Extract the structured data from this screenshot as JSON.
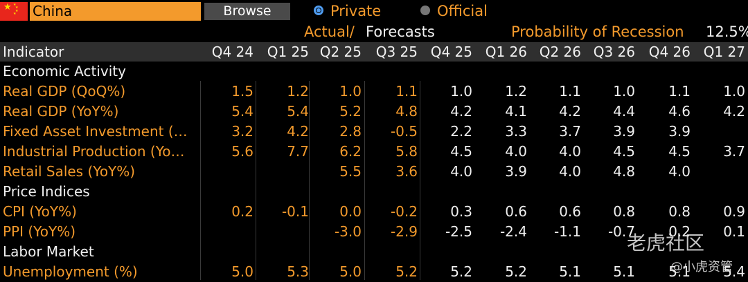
{
  "topbar": {
    "country": "China",
    "browse_label": "Browse",
    "radio_private": "Private",
    "radio_official": "Official",
    "private_selected": true,
    "flag_colors": {
      "red": "#e8261c",
      "star": "#ffde00"
    }
  },
  "subheader": {
    "actual_label": "Actual/",
    "forecasts_label": "Forecasts",
    "recession_label": "Probability of Recession",
    "recession_value": "12.5%"
  },
  "table": {
    "indicator_header": "Indicator",
    "periods": [
      "Q4 24",
      "Q1 25",
      "Q2 25",
      "Q3 25",
      "Q4 25",
      "Q1 26",
      "Q2 26",
      "Q3 26",
      "Q4 26",
      "Q1 27"
    ],
    "actual_count": 4,
    "rows": [
      {
        "type": "section",
        "label": "Economic Activity"
      },
      {
        "type": "data",
        "label": "Real GDP (QoQ%)",
        "values": [
          "1.5",
          "1.2",
          "1.0",
          "1.1",
          "1.0",
          "1.2",
          "1.1",
          "1.0",
          "1.1",
          "1.0"
        ]
      },
      {
        "type": "data",
        "label": "Real GDP (YoY%)",
        "values": [
          "5.4",
          "5.4",
          "5.2",
          "4.8",
          "4.2",
          "4.1",
          "4.2",
          "4.4",
          "4.6",
          "4.2"
        ]
      },
      {
        "type": "data",
        "label": "Fixed Asset Investment (…",
        "values": [
          "3.2",
          "4.2",
          "2.8",
          "-0.5",
          "2.2",
          "3.3",
          "3.7",
          "3.9",
          "3.9",
          ""
        ]
      },
      {
        "type": "data",
        "label": "Industrial Production (Yo…",
        "values": [
          "5.6",
          "7.7",
          "6.2",
          "5.8",
          "4.5",
          "4.0",
          "4.0",
          "4.5",
          "4.5",
          "3.7"
        ]
      },
      {
        "type": "data",
        "label": "Retail Sales (YoY%)",
        "values": [
          "",
          "",
          "5.5",
          "3.6",
          "4.0",
          "3.9",
          "4.0",
          "4.8",
          "4.0",
          ""
        ]
      },
      {
        "type": "section",
        "label": "Price Indices"
      },
      {
        "type": "data",
        "label": "CPI (YoY%)",
        "values": [
          "0.2",
          "-0.1",
          "0.0",
          "-0.2",
          "0.3",
          "0.6",
          "0.6",
          "0.8",
          "0.8",
          "0.9"
        ]
      },
      {
        "type": "data",
        "label": "PPI (YoY%)",
        "values": [
          "",
          "",
          "-3.0",
          "-2.9",
          "-2.5",
          "-2.4",
          "-1.1",
          "-0.7",
          "0.2",
          "0.1"
        ]
      },
      {
        "type": "section",
        "label": "Labor Market"
      },
      {
        "type": "data",
        "label": "Unemployment (%)",
        "values": [
          "5.0",
          "5.3",
          "5.0",
          "5.2",
          "5.2",
          "5.2",
          "5.1",
          "5.1",
          "5.1",
          "5.4"
        ]
      }
    ]
  },
  "watermarks": {
    "top": "老虎社区",
    "bottom": "@小虎资管"
  },
  "colors": {
    "accent": "#f39a2c",
    "header_bg": "#2f2f2f",
    "browse_bg": "#4a4a4a",
    "radio_selected": "#4f9cf0"
  }
}
